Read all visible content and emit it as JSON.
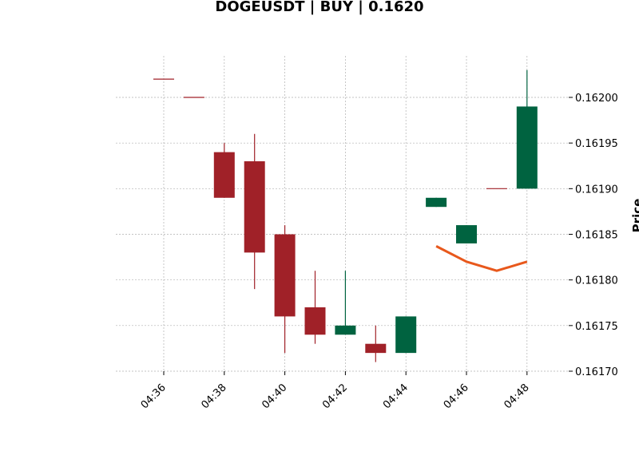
{
  "chart_data": {
    "type": "candlestick",
    "title": "DOGEUSDT | BUY | 0.1620",
    "ylabel": "Price",
    "xlabel": "",
    "ylim": [
      0.1617,
      0.16205
    ],
    "grid": true,
    "y_ticks": [
      "0.16170",
      "0.16175",
      "0.16180",
      "0.16185",
      "0.16190",
      "0.16195",
      "0.16200"
    ],
    "x_ticks": [
      "04:36",
      "04:38",
      "04:40",
      "04:42",
      "04:44",
      "04:46",
      "04:48"
    ],
    "colors": {
      "up": "#006340",
      "down": "#a02128",
      "line": "#e8581c",
      "grid": "#b0b0b0"
    },
    "candles": [
      {
        "time": "04:36",
        "open": 0.16202,
        "high": 0.16202,
        "low": 0.16202,
        "close": 0.16202
      },
      {
        "time": "04:37",
        "open": 0.162,
        "high": 0.162,
        "low": 0.162,
        "close": 0.162
      },
      {
        "time": "04:38",
        "open": 0.16194,
        "high": 0.16195,
        "low": 0.16189,
        "close": 0.16189
      },
      {
        "time": "04:39",
        "open": 0.16193,
        "high": 0.16196,
        "low": 0.16179,
        "close": 0.16183
      },
      {
        "time": "04:40",
        "open": 0.16185,
        "high": 0.16186,
        "low": 0.16172,
        "close": 0.16176
      },
      {
        "time": "04:41",
        "open": 0.16177,
        "high": 0.16181,
        "low": 0.16173,
        "close": 0.16174
      },
      {
        "time": "04:42",
        "open": 0.16174,
        "high": 0.16181,
        "low": 0.16174,
        "close": 0.16175
      },
      {
        "time": "04:43",
        "open": 0.16173,
        "high": 0.16175,
        "low": 0.16171,
        "close": 0.16172
      },
      {
        "time": "04:44",
        "open": 0.16172,
        "high": 0.16176,
        "low": 0.16172,
        "close": 0.16176
      },
      {
        "time": "04:45",
        "open": 0.16188,
        "high": 0.16189,
        "low": 0.16188,
        "close": 0.16189
      },
      {
        "time": "04:46",
        "open": 0.16184,
        "high": 0.16186,
        "low": 0.16184,
        "close": 0.16186
      },
      {
        "time": "04:47",
        "open": 0.1619,
        "high": 0.1619,
        "low": 0.1619,
        "close": 0.1619
      },
      {
        "time": "04:48",
        "open": 0.1619,
        "high": 0.16203,
        "low": 0.1619,
        "close": 0.16199
      }
    ],
    "line_series": [
      {
        "time": "04:45",
        "value": 0.161837
      },
      {
        "time": "04:46",
        "value": 0.16182
      },
      {
        "time": "04:47",
        "value": 0.16181
      },
      {
        "time": "04:48",
        "value": 0.16182
      }
    ]
  }
}
